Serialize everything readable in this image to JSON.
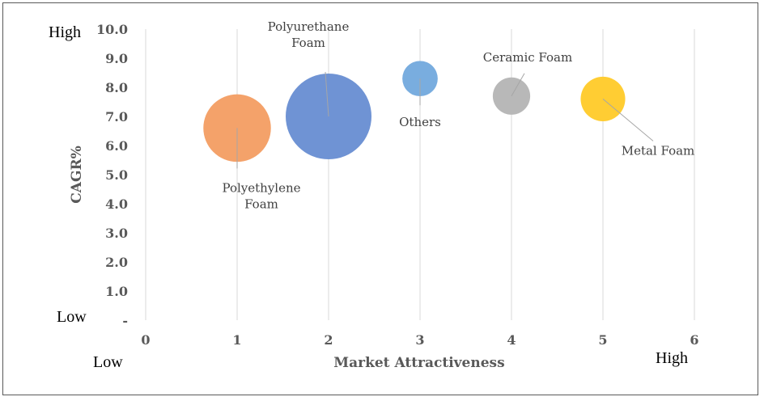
{
  "chart_data": {
    "type": "bubble",
    "xlabel": "Market Attractiveness",
    "ylabel": "CAGR%",
    "xlim": [
      0,
      6
    ],
    "ylim": [
      0,
      10
    ],
    "x_ticks": [
      "0",
      "1",
      "2",
      "3",
      "4",
      "5",
      "6"
    ],
    "y_ticks": [
      "-",
      "1.0",
      "2.0",
      "3.0",
      "4.0",
      "5.0",
      "6.0",
      "7.0",
      "8.0",
      "9.0",
      "10.0"
    ],
    "grid": "vertical",
    "corner_labels": {
      "y_high": "High",
      "y_low": "Low",
      "x_low": "Low",
      "x_high": "High"
    },
    "series": [
      {
        "name": "Polyethylene Foam",
        "label_lines": [
          "Polyethylene",
          "Foam"
        ],
        "x": 1,
        "y": 6.6,
        "size": 0.62,
        "color": "#f4a26a"
      },
      {
        "name": "Polyurethane Foam",
        "label_lines": [
          "Polyurethane",
          "Foam"
        ],
        "x": 2,
        "y": 7.0,
        "size": 1.0,
        "color": "#6f93d4"
      },
      {
        "name": "Others",
        "label_lines": [
          "Others"
        ],
        "x": 3,
        "y": 8.3,
        "size": 0.17,
        "color": "#79addf"
      },
      {
        "name": "Ceramic Foam",
        "label_lines": [
          "Ceramic Foam"
        ],
        "x": 4,
        "y": 7.7,
        "size": 0.19,
        "color": "#b8b8b8"
      },
      {
        "name": "Metal Foam",
        "label_lines": [
          "Metal Foam"
        ],
        "x": 5,
        "y": 7.6,
        "size": 0.27,
        "color": "#ffcd33"
      }
    ]
  }
}
